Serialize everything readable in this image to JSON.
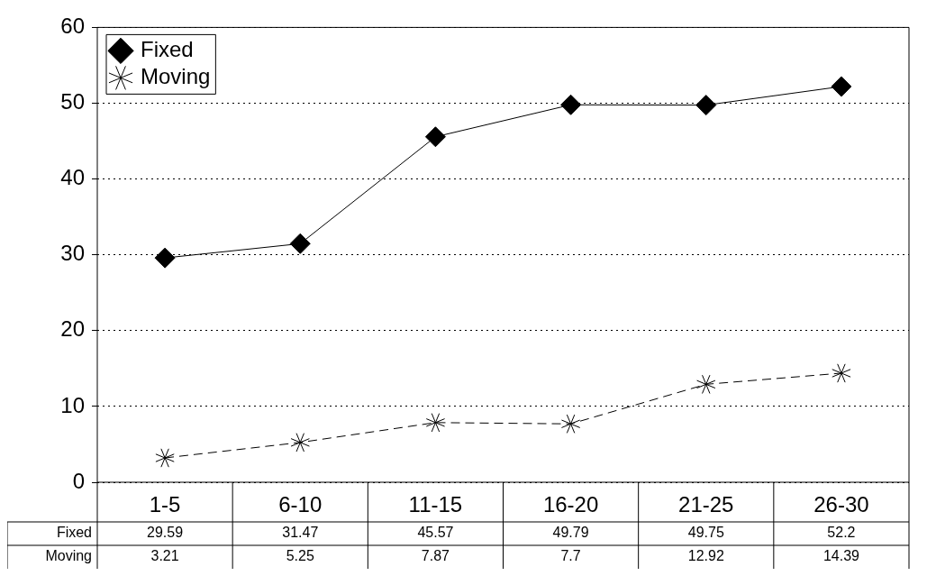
{
  "chart_data": {
    "type": "line",
    "categories": [
      "1-5",
      "6-10",
      "11-15",
      "16-20",
      "21-25",
      "26-30"
    ],
    "series": [
      {
        "name": "Fixed",
        "color": "#000000",
        "values": [
          29.59,
          31.47,
          45.57,
          49.79,
          49.75,
          52.2
        ],
        "marker": "diamond",
        "line_style": "solid"
      },
      {
        "name": "Moving",
        "color": "#000000",
        "values": [
          3.21,
          5.25,
          7.87,
          7.7,
          12.92,
          14.39
        ],
        "marker": "cross",
        "line_style": "dashed"
      }
    ],
    "ylim": [
      0,
      60
    ],
    "yticks": [
      0,
      10,
      20,
      30,
      40,
      50,
      60
    ],
    "grid": "y",
    "legend": "top left",
    "data_labels": true
  }
}
